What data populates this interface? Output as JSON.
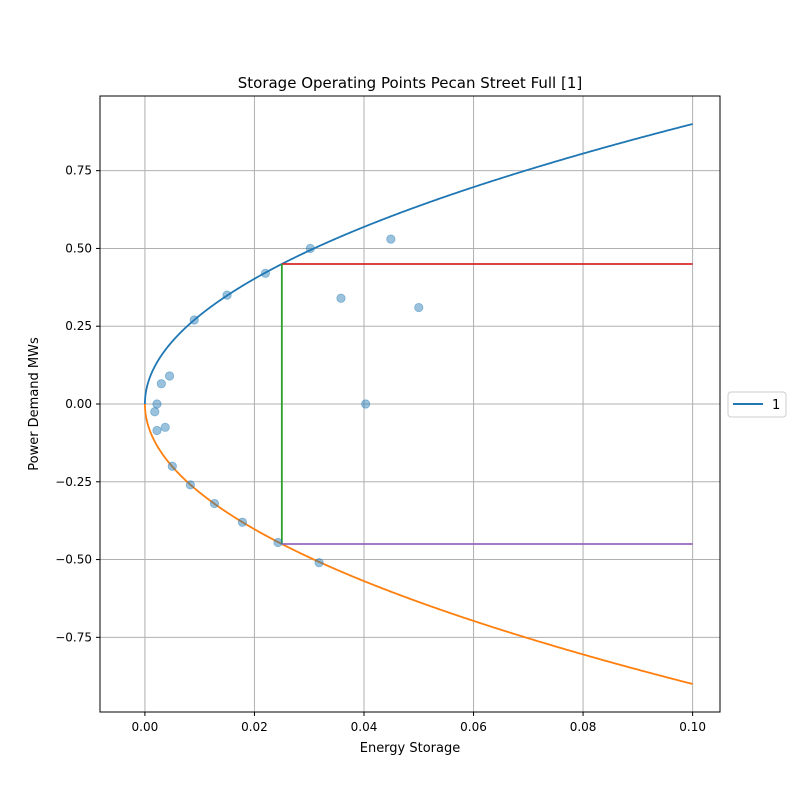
{
  "chart_data": {
    "type": "scatter",
    "title": "Storage Operating Points Pecan Street Full [1]",
    "xlabel": "Energy Storage",
    "ylabel": "Power Demand MWs",
    "xlim": [
      -0.0082,
      0.105
    ],
    "ylim": [
      -0.99,
      0.99
    ],
    "x_ticks": [
      0.0,
      0.02,
      0.04,
      0.06,
      0.08,
      0.1
    ],
    "x_tick_labels": [
      "0.00",
      "0.02",
      "0.04",
      "0.06",
      "0.08",
      "0.10"
    ],
    "y_ticks": [
      -0.75,
      -0.5,
      -0.25,
      0.0,
      0.25,
      0.5,
      0.75
    ],
    "y_tick_labels": [
      "−0.75",
      "−0.50",
      "−0.25",
      "0.00",
      "0.25",
      "0.50",
      "0.75"
    ],
    "grid": true,
    "legend": {
      "position": "right, outside plot",
      "entries": [
        {
          "label": "1",
          "color": "#1f77b4"
        }
      ]
    },
    "curves": [
      {
        "label": "1",
        "color": "#1f77b4",
        "equation": "y = 0.9*sqrt(x/0.1)",
        "x_range": [
          0,
          0.1
        ]
      },
      {
        "color": "#ff7f0e",
        "equation": "y = -0.9*sqrt(x/0.1)",
        "x_range": [
          0,
          0.1
        ]
      }
    ],
    "lines": [
      {
        "color": "#d62728",
        "x": [
          0.025,
          0.1
        ],
        "y": [
          0.45,
          0.45
        ]
      },
      {
        "color": "#2ca02c",
        "x": [
          0.025,
          0.025
        ],
        "y": [
          -0.45,
          0.45
        ]
      },
      {
        "color": "#9467bd",
        "x": [
          0.025,
          0.1
        ],
        "y": [
          -0.45,
          -0.45
        ]
      }
    ],
    "scatter": {
      "color": "#1f77b4",
      "alpha": 0.45,
      "points": [
        [
          0.009,
          0.27
        ],
        [
          0.015,
          0.35
        ],
        [
          0.022,
          0.42
        ],
        [
          0.0302,
          0.5
        ],
        [
          0.0358,
          0.34
        ],
        [
          0.0449,
          0.53
        ],
        [
          0.05,
          0.31
        ],
        [
          0.0403,
          0.0
        ],
        [
          0.003,
          0.065
        ],
        [
          0.0045,
          0.09
        ],
        [
          0.0022,
          0.0
        ],
        [
          0.0018,
          -0.025
        ],
        [
          0.0037,
          -0.075
        ],
        [
          0.0022,
          -0.085
        ],
        [
          0.005,
          -0.2
        ],
        [
          0.0083,
          -0.26
        ],
        [
          0.0127,
          -0.32
        ],
        [
          0.0178,
          -0.38
        ],
        [
          0.0243,
          -0.445
        ],
        [
          0.0318,
          -0.51
        ]
      ]
    }
  },
  "colors": {
    "blue": "#1f77b4",
    "orange": "#ff7f0e",
    "red": "#d62728",
    "green": "#2ca02c",
    "purple": "#9467bd",
    "grid": "#b0b0b0"
  }
}
